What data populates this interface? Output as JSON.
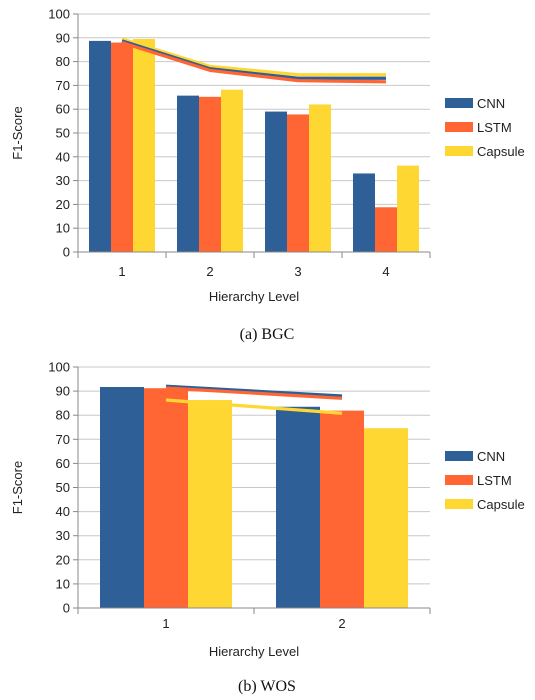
{
  "chart_data": [
    {
      "type": "bar",
      "caption": "(a) BGC",
      "xlabel": "Hierarchy Level",
      "ylabel": "F1-Score",
      "ylim": [
        0,
        100
      ],
      "yticks": [
        0,
        10,
        20,
        30,
        40,
        50,
        60,
        70,
        80,
        90,
        100
      ],
      "categories": [
        "1",
        "2",
        "3",
        "4"
      ],
      "grid": true,
      "legend_position": "right",
      "series": [
        {
          "name": "CNN",
          "color": "#2e5f96",
          "values": [
            88.7,
            65.7,
            59.0,
            33.0
          ],
          "line": [
            88.7,
            77.0,
            73.0,
            73.0
          ]
        },
        {
          "name": "LSTM",
          "color": "#ff6633",
          "values": [
            88.0,
            65.2,
            57.8,
            18.8
          ],
          "line": [
            88.0,
            76.3,
            72.0,
            71.5
          ]
        },
        {
          "name": "Capsule",
          "color": "#ffd733",
          "values": [
            89.5,
            68.2,
            62.0,
            36.3
          ],
          "line": [
            89.5,
            78.0,
            74.5,
            74.5
          ]
        }
      ]
    },
    {
      "type": "bar",
      "caption": "(b) WOS",
      "xlabel": "Hierarchy Level",
      "ylabel": "F1-Score",
      "ylim": [
        0,
        100
      ],
      "yticks": [
        0,
        10,
        20,
        30,
        40,
        50,
        60,
        70,
        80,
        90,
        100
      ],
      "categories": [
        "1",
        "2"
      ],
      "grid": true,
      "legend_position": "right",
      "series": [
        {
          "name": "CNN",
          "color": "#2e5f96",
          "values": [
            91.7,
            83.5
          ],
          "line": [
            92.0,
            88.0
          ]
        },
        {
          "name": "LSTM",
          "color": "#ff6633",
          "values": [
            91.2,
            81.9
          ],
          "line": [
            91.3,
            87.0
          ]
        },
        {
          "name": "Capsule",
          "color": "#ffd733",
          "values": [
            86.3,
            74.6
          ],
          "line": [
            86.3,
            80.8
          ]
        }
      ]
    }
  ]
}
